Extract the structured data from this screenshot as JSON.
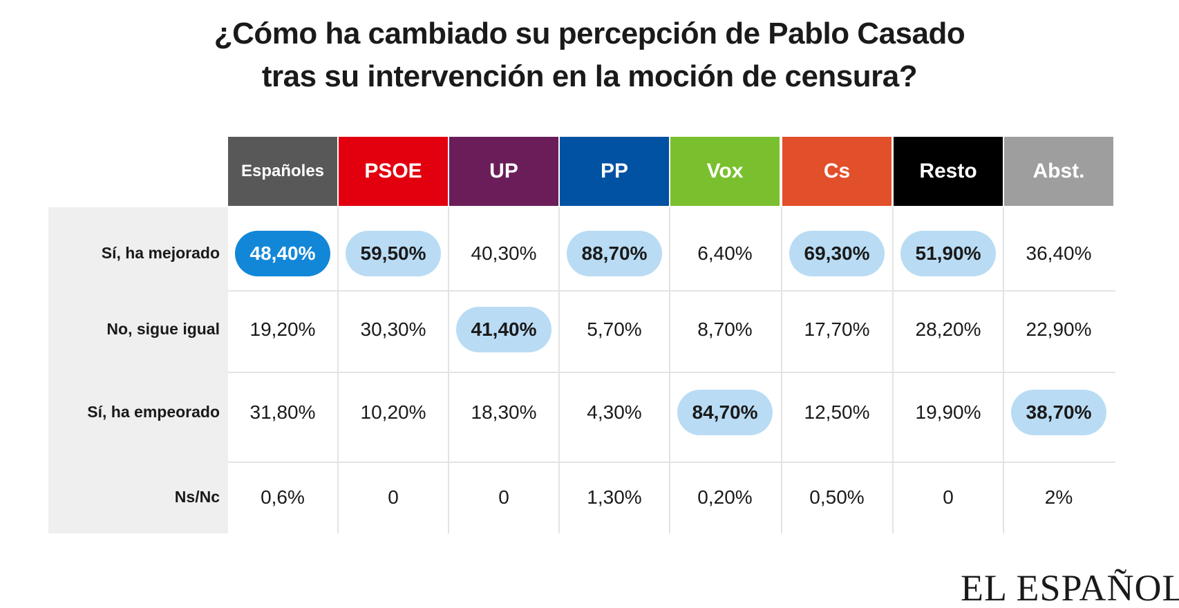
{
  "title_lines": [
    "¿Cómo ha cambiado su percepción de Pablo Casado",
    "tras su intervención en la moción de censura?"
  ],
  "chart_data": {
    "type": "table",
    "columns": [
      {
        "label": "Españoles",
        "color": "#585858"
      },
      {
        "label": "PSOE",
        "color": "#e2000f"
      },
      {
        "label": "UP",
        "color": "#6b1d5a"
      },
      {
        "label": "PP",
        "color": "#0152a3"
      },
      {
        "label": "Vox",
        "color": "#7ac02e"
      },
      {
        "label": "Cs",
        "color": "#e24f2b"
      },
      {
        "label": "Resto",
        "color": "#000000"
      },
      {
        "label": "Abst.",
        "color": "#9e9e9e"
      }
    ],
    "rows": [
      {
        "label": "Sí, ha mejorado",
        "values": [
          "48,40%",
          "59,50%",
          "40,30%",
          "88,70%",
          "6,40%",
          "69,30%",
          "51,90%",
          "36,40%"
        ],
        "highlight": [
          "dark",
          "light",
          "",
          "light",
          "",
          "light",
          "light",
          ""
        ]
      },
      {
        "label": "No, sigue igual",
        "values": [
          "19,20%",
          "30,30%",
          "41,40%",
          "5,70%",
          "8,70%",
          "17,70%",
          "28,20%",
          "22,90%"
        ],
        "highlight": [
          "",
          "",
          "light",
          "",
          "",
          "",
          "",
          ""
        ]
      },
      {
        "label": "Sí, ha empeorado",
        "values": [
          "31,80%",
          "10,20%",
          "18,30%",
          "4,30%",
          "84,70%",
          "12,50%",
          "19,90%",
          "38,70%"
        ],
        "highlight": [
          "",
          "",
          "",
          "",
          "light",
          "",
          "",
          "light"
        ]
      },
      {
        "label": "Ns/Nc",
        "values": [
          "0,6%",
          "0",
          "0",
          "1,30%",
          "0,20%",
          "0,50%",
          "0",
          "2%"
        ],
        "highlight": [
          "",
          "",
          "",
          "",
          "",
          "",
          "",
          ""
        ]
      }
    ],
    "highlight_colors": {
      "light": "#b9dcf4",
      "dark": "#1287d8"
    }
  },
  "logo_text": "EL ESPAÑOL"
}
